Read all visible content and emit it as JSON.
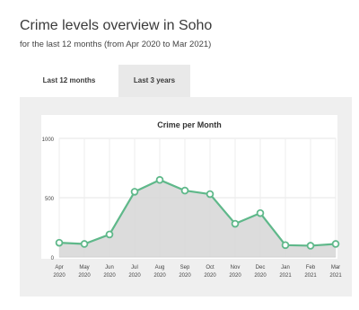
{
  "header": {
    "title": "Crime levels overview in Soho",
    "subtitle": "for the last 12 months (from Apr 2020 to Mar 2021)"
  },
  "tabs": [
    {
      "label": "Last 12 months",
      "active": true
    },
    {
      "label": "Last 3 years",
      "active": false
    }
  ],
  "colors": {
    "line": "#5fb88a",
    "area": "#d6d6d6",
    "point_fill": "#ffffff",
    "panel_bg": "#efefef",
    "plot_bg": "#ffffff"
  },
  "chart_data": {
    "type": "area",
    "title": "Crime per Month",
    "xlabel": "",
    "ylabel": "",
    "ylim": [
      0,
      1000
    ],
    "yticks": [
      "0",
      "500",
      "1000"
    ],
    "grid": true,
    "categories": [
      {
        "month": "Apr",
        "year": "2020"
      },
      {
        "month": "May",
        "year": "2020"
      },
      {
        "month": "Jun",
        "year": "2020"
      },
      {
        "month": "Jul",
        "year": "2020"
      },
      {
        "month": "Aug",
        "year": "2020"
      },
      {
        "month": "Sep",
        "year": "2020"
      },
      {
        "month": "Oct",
        "year": "2020"
      },
      {
        "month": "Nov",
        "year": "2020"
      },
      {
        "month": "Dec",
        "year": "2020"
      },
      {
        "month": "Jan",
        "year": "2021"
      },
      {
        "month": "Feb",
        "year": "2021"
      },
      {
        "month": "Mar",
        "year": "2021"
      }
    ],
    "values": [
      120,
      110,
      190,
      550,
      650,
      560,
      530,
      280,
      370,
      100,
      95,
      110
    ]
  }
}
